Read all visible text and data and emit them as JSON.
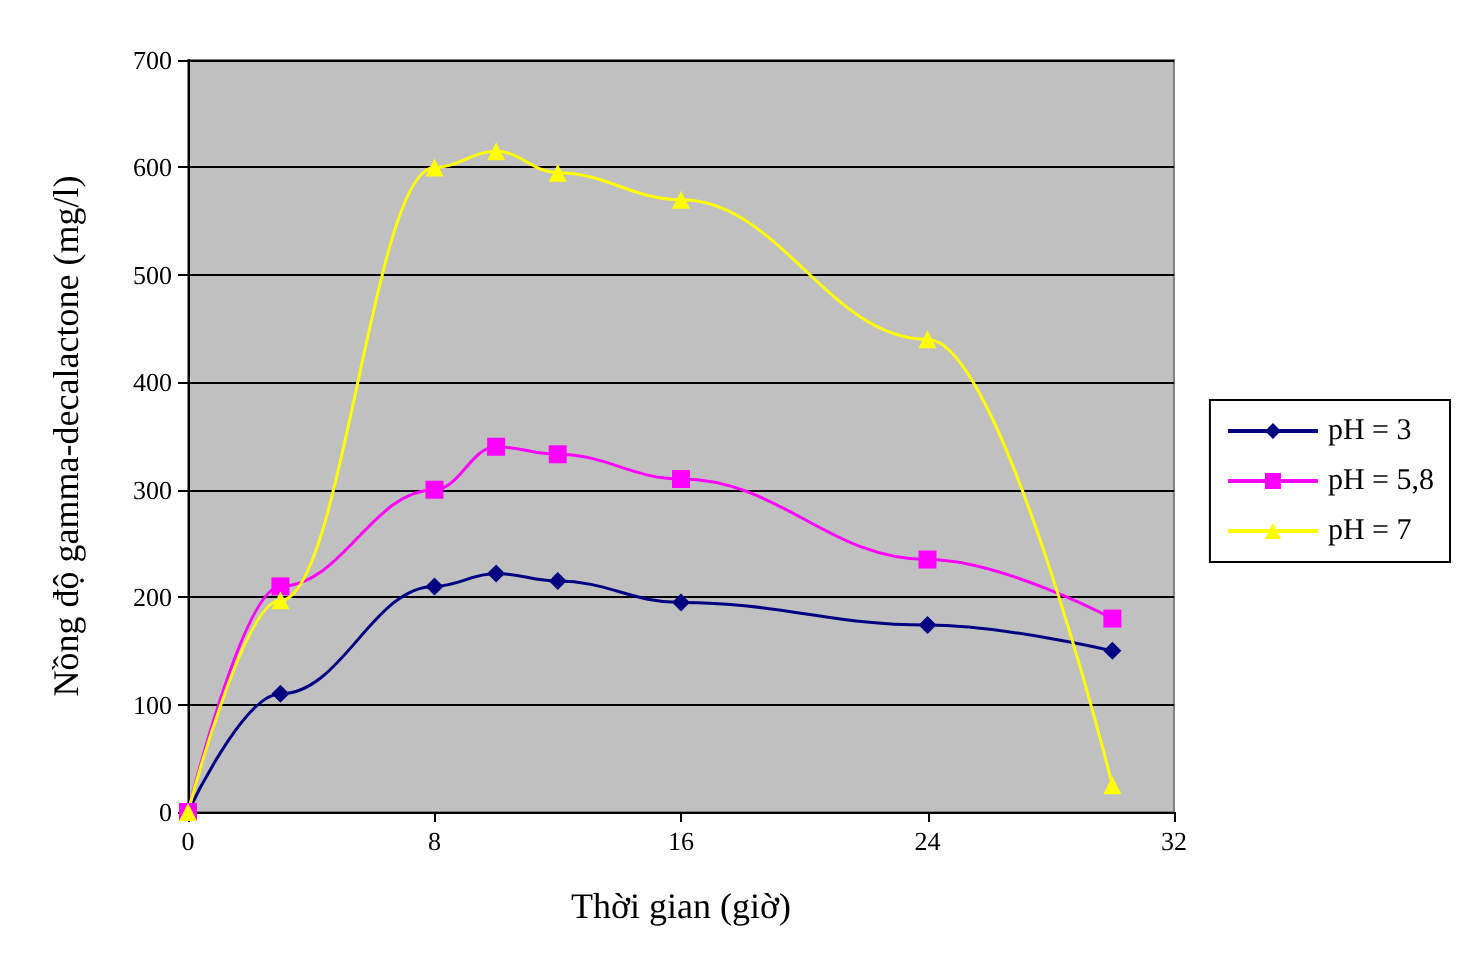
{
  "chart_data": {
    "type": "line",
    "xlabel": "Thời gian (giờ)",
    "ylabel": "Nồng độ gamma-decalactone (mg/l)",
    "x": [
      0,
      3,
      8,
      10,
      12,
      16,
      24,
      30
    ],
    "series": [
      {
        "name": "pH = 3",
        "color": "#000080",
        "marker": "diamond",
        "values": [
          0,
          110,
          210,
          222,
          215,
          195,
          174,
          150
        ]
      },
      {
        "name": "pH = 5,8",
        "color": "#ff00ff",
        "marker": "square",
        "values": [
          0,
          210,
          300,
          340,
          333,
          310,
          235,
          180
        ]
      },
      {
        "name": "pH = 7",
        "color": "#ffff00",
        "marker": "triangle",
        "values": [
          0,
          197,
          600,
          615,
          595,
          570,
          440,
          25
        ]
      }
    ],
    "xlim": [
      0,
      32
    ],
    "xticks": [
      0,
      8,
      16,
      24,
      32
    ],
    "ylim": [
      0,
      700
    ],
    "yticks": [
      0,
      100,
      200,
      300,
      400,
      500,
      600,
      700
    ],
    "grid": "y",
    "legend": "right",
    "line_style": "solid"
  }
}
